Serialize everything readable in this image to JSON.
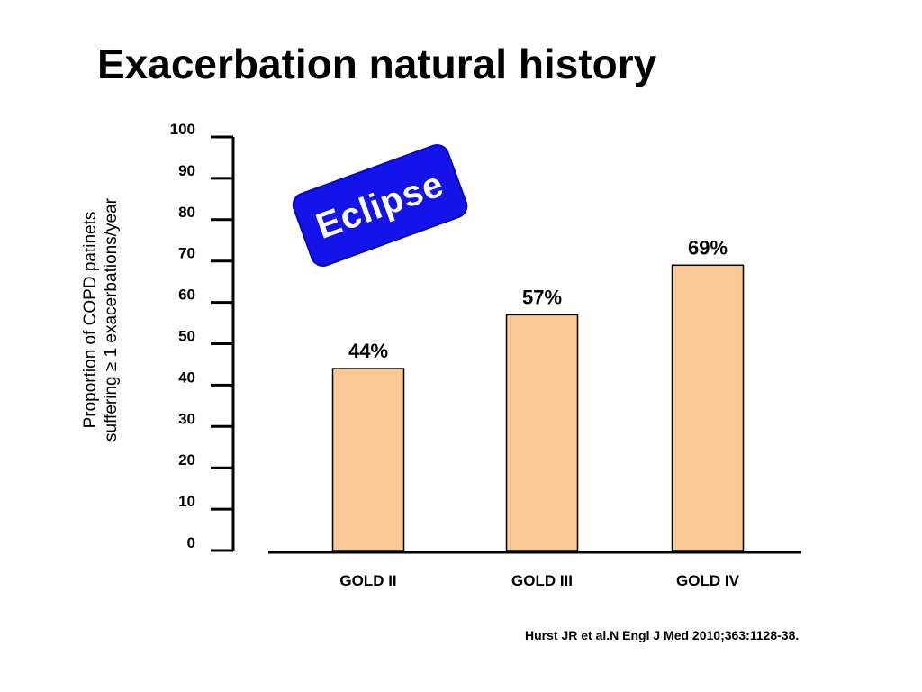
{
  "slide": {
    "title": "Exacerbation natural history",
    "badge": "Eclipse",
    "citation": "Hurst JR et al.N Engl J Med 2010;363:1128-38."
  },
  "chart_data": {
    "type": "bar",
    "categories": [
      "GOLD II",
      "GOLD III",
      "GOLD IV"
    ],
    "values": [
      44,
      57,
      69
    ],
    "data_labels": [
      "44%",
      "57%",
      "69%"
    ],
    "title": "",
    "xlabel": "",
    "ylabel_lines": [
      "Proportion of COPD patinets",
      "suffering  ≥ 1 exacerbations/year"
    ],
    "ylim": [
      0,
      100
    ],
    "yticks": [
      0,
      10,
      20,
      30,
      40,
      50,
      60,
      70,
      80,
      90,
      100
    ],
    "grid": false,
    "bar_color": "#fbc896",
    "bar_edge_color": "#000000"
  }
}
